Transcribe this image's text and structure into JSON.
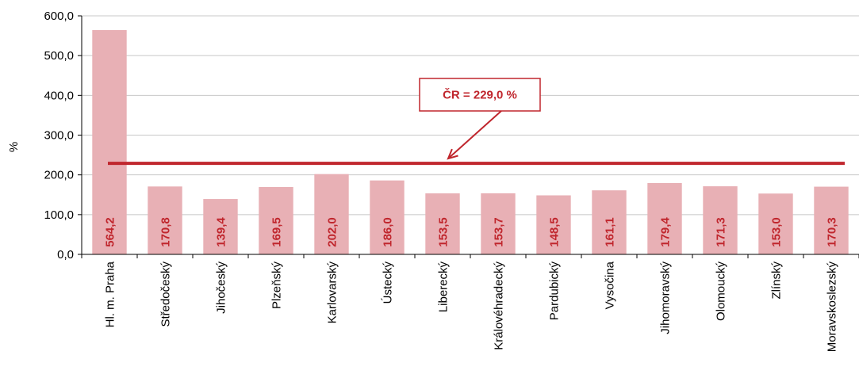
{
  "chart_data": {
    "type": "bar",
    "ylabel": "%",
    "xlabel": "",
    "ylim": [
      0,
      600
    ],
    "yticks": [
      "0,0",
      "100,0",
      "200,0",
      "300,0",
      "400,0",
      "500,0",
      "600,0"
    ],
    "categories": [
      "Hl. m. Praha",
      "Středočeský",
      "Jihočeský",
      "Plzeňský",
      "Karlovarský",
      "Ústecký",
      "Liberecký",
      "Královéhradecký",
      "Pardubický",
      "Vysočina",
      "Jihomoravský",
      "Olomoucký",
      "Zlínský",
      "Moravskoslezský"
    ],
    "values": [
      564.2,
      170.8,
      139.4,
      169.5,
      202.0,
      186.0,
      153.5,
      153.7,
      148.5,
      161.1,
      179.4,
      171.3,
      153.0,
      170.3
    ],
    "value_labels": [
      "564,2",
      "170,8",
      "139,4",
      "169,5",
      "202,0",
      "186,0",
      "153,5",
      "153,7",
      "148,5",
      "161,1",
      "179,4",
      "171,3",
      "153,0",
      "170,3"
    ],
    "reference_line": {
      "value": 229.0,
      "label": "ČR = 229,0 %"
    },
    "grid": true,
    "colors": {
      "bar": "#e8b0b5",
      "accent": "#c0262d",
      "grid": "#c8c8c8",
      "axis": "#000000"
    }
  }
}
